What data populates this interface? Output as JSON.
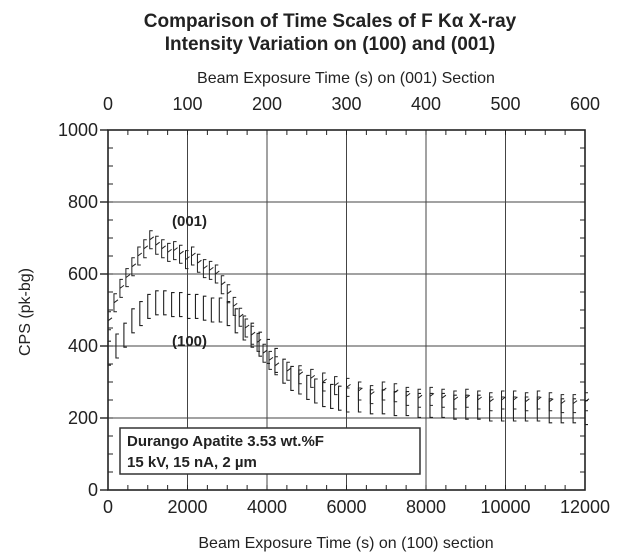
{
  "chart_data": {
    "type": "scatter",
    "title": "Comparison of Time Scales of F  Kα  X-ray",
    "subtitle": "Intensity  Variation on (100) and (001)",
    "xlabel": "Beam Exposure Time (s) on (100) section",
    "x2label": "Beam Exposure Time (s) on (001) Section",
    "ylabel": "CPS (pk-bg)",
    "xlim": [
      0,
      12000
    ],
    "x2lim": [
      0,
      600
    ],
    "ylim": [
      0,
      1000
    ],
    "xticks": [
      "0",
      "2000",
      "4000",
      "6000",
      "8000",
      "10000",
      "12000"
    ],
    "x2ticks": [
      "0",
      "100",
      "200",
      "300",
      "400",
      "500",
      "600"
    ],
    "yticks": [
      "0",
      "200",
      "400",
      "600",
      "800",
      "1000"
    ],
    "grid": true,
    "series": [
      {
        "name": "(001)",
        "x": [
          0,
          150,
          300,
          450,
          600,
          750,
          900,
          1050,
          1200,
          1350,
          1500,
          1650,
          1800,
          1950,
          2100,
          2250,
          2400,
          2550,
          2700,
          2850,
          3000,
          3150,
          3300,
          3450,
          3600,
          3750,
          3900,
          4050,
          4200,
          4500,
          4800,
          5100,
          5400,
          5700,
          6000,
          6300,
          6600,
          6900,
          7200,
          7500,
          7800,
          8100,
          8400,
          8700,
          9000,
          9300,
          9600,
          9900,
          10200,
          10500,
          10800,
          11100,
          11400,
          11700,
          12000
        ],
        "y": [
          470,
          520,
          560,
          590,
          620,
          650,
          670,
          695,
          680,
          670,
          660,
          665,
          655,
          640,
          650,
          630,
          615,
          610,
          600,
          570,
          545,
          510,
          480,
          450,
          430,
          410,
          380,
          360,
          345,
          330,
          320,
          310,
          300,
          290,
          285,
          275,
          265,
          275,
          270,
          260,
          255,
          260,
          255,
          250,
          255,
          250,
          245,
          250,
          250,
          245,
          250,
          245,
          240,
          240,
          245
        ]
      },
      {
        "name": "(100)",
        "x": [
          0,
          200,
          400,
          600,
          800,
          1000,
          1200,
          1400,
          1600,
          1800,
          2000,
          2200,
          2400,
          2600,
          2800,
          3000,
          3200,
          3400,
          3600,
          3800,
          4000,
          4200,
          4400,
          4600,
          4800,
          5000,
          5200,
          5400,
          5600,
          5800,
          6000,
          6300,
          6600,
          6900,
          7200,
          7500,
          7800,
          8100,
          8400,
          8700,
          9000,
          9300,
          9600,
          9900,
          10200,
          10500,
          10800,
          11100,
          11400,
          11700,
          12000
        ],
        "y": [
          380,
          400,
          430,
          470,
          490,
          510,
          520,
          520,
          515,
          515,
          510,
          510,
          505,
          500,
          500,
          490,
          470,
          450,
          430,
          405,
          385,
          360,
          330,
          310,
          300,
          285,
          275,
          265,
          260,
          255,
          250,
          250,
          245,
          245,
          240,
          240,
          235,
          235,
          235,
          230,
          230,
          230,
          225,
          225,
          225,
          225,
          225,
          220,
          220,
          220,
          215
        ]
      }
    ],
    "annotations": [
      "Durango Apatite  3.53 wt.%F",
      "15 kV, 15 nA, 2 µm"
    ]
  }
}
